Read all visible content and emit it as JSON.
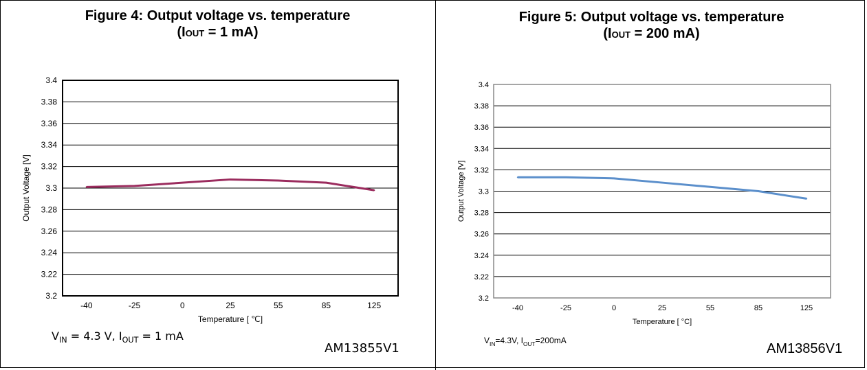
{
  "charts": [
    {
      "title_line1": "Figure 4: Output voltage vs. temperature",
      "title_iout_prefix": "(I",
      "title_iout_sub": "OUT",
      "title_iout_suffix": " = 1 mA)",
      "condition": {
        "vin_label": "V",
        "vin_sub": "IN",
        "vin_value": " = 4.3 V, I",
        "iout_sub": "OUT",
        "iout_value": " = 1 mA"
      },
      "figure_code": "AM13855V1",
      "line_color": "#9b2c5e",
      "frame_color": "#000000",
      "chart_data": {
        "type": "line",
        "title": "Output voltage vs. temperature",
        "xlabel": "Temperature [ ℃]",
        "ylabel": "Output Voltage [V]",
        "categories": [
          "-40",
          "-25",
          "0",
          "25",
          "55",
          "85",
          "125"
        ],
        "yticks": [
          "3.4",
          "3.38",
          "3.36",
          "3.34",
          "3.32",
          "3.3",
          "3.28",
          "3.26",
          "3.24",
          "3.22",
          "3.2"
        ],
        "ylim": [
          3.2,
          3.4
        ],
        "grid": true,
        "series": [
          {
            "values": [
              3.301,
              3.302,
              3.305,
              3.308,
              3.307,
              3.305,
              3.298
            ]
          }
        ]
      }
    },
    {
      "title_line1": "Figure 5: Output voltage vs. temperature",
      "title_iout_prefix": "(I",
      "title_iout_sub": "OUT",
      "title_iout_suffix": " = 200 mA)",
      "condition": {
        "vin_label": "V",
        "vin_sub": "IN",
        "vin_value": "=4.3V, I",
        "iout_sub": "OUT",
        "iout_value": "=200mA"
      },
      "figure_code": "AM13856V1",
      "line_color": "#5b8fcb",
      "frame_color": "#888888",
      "chart_data": {
        "type": "line",
        "title": "Output voltage vs. temperature",
        "xlabel": "Temperature [ °C]",
        "ylabel": "Output Voltage [V]",
        "categories": [
          "-40",
          "-25",
          "0",
          "25",
          "55",
          "85",
          "125"
        ],
        "yticks": [
          "3.4",
          "3.38",
          "3.36",
          "3.34",
          "3.32",
          "3.3",
          "3.28",
          "3.26",
          "3.24",
          "3.22",
          "3.2"
        ],
        "ylim": [
          3.2,
          3.4
        ],
        "grid": true,
        "series": [
          {
            "values": [
              3.313,
              3.313,
              3.312,
              3.308,
              3.304,
              3.3,
              3.293
            ]
          }
        ]
      }
    }
  ]
}
